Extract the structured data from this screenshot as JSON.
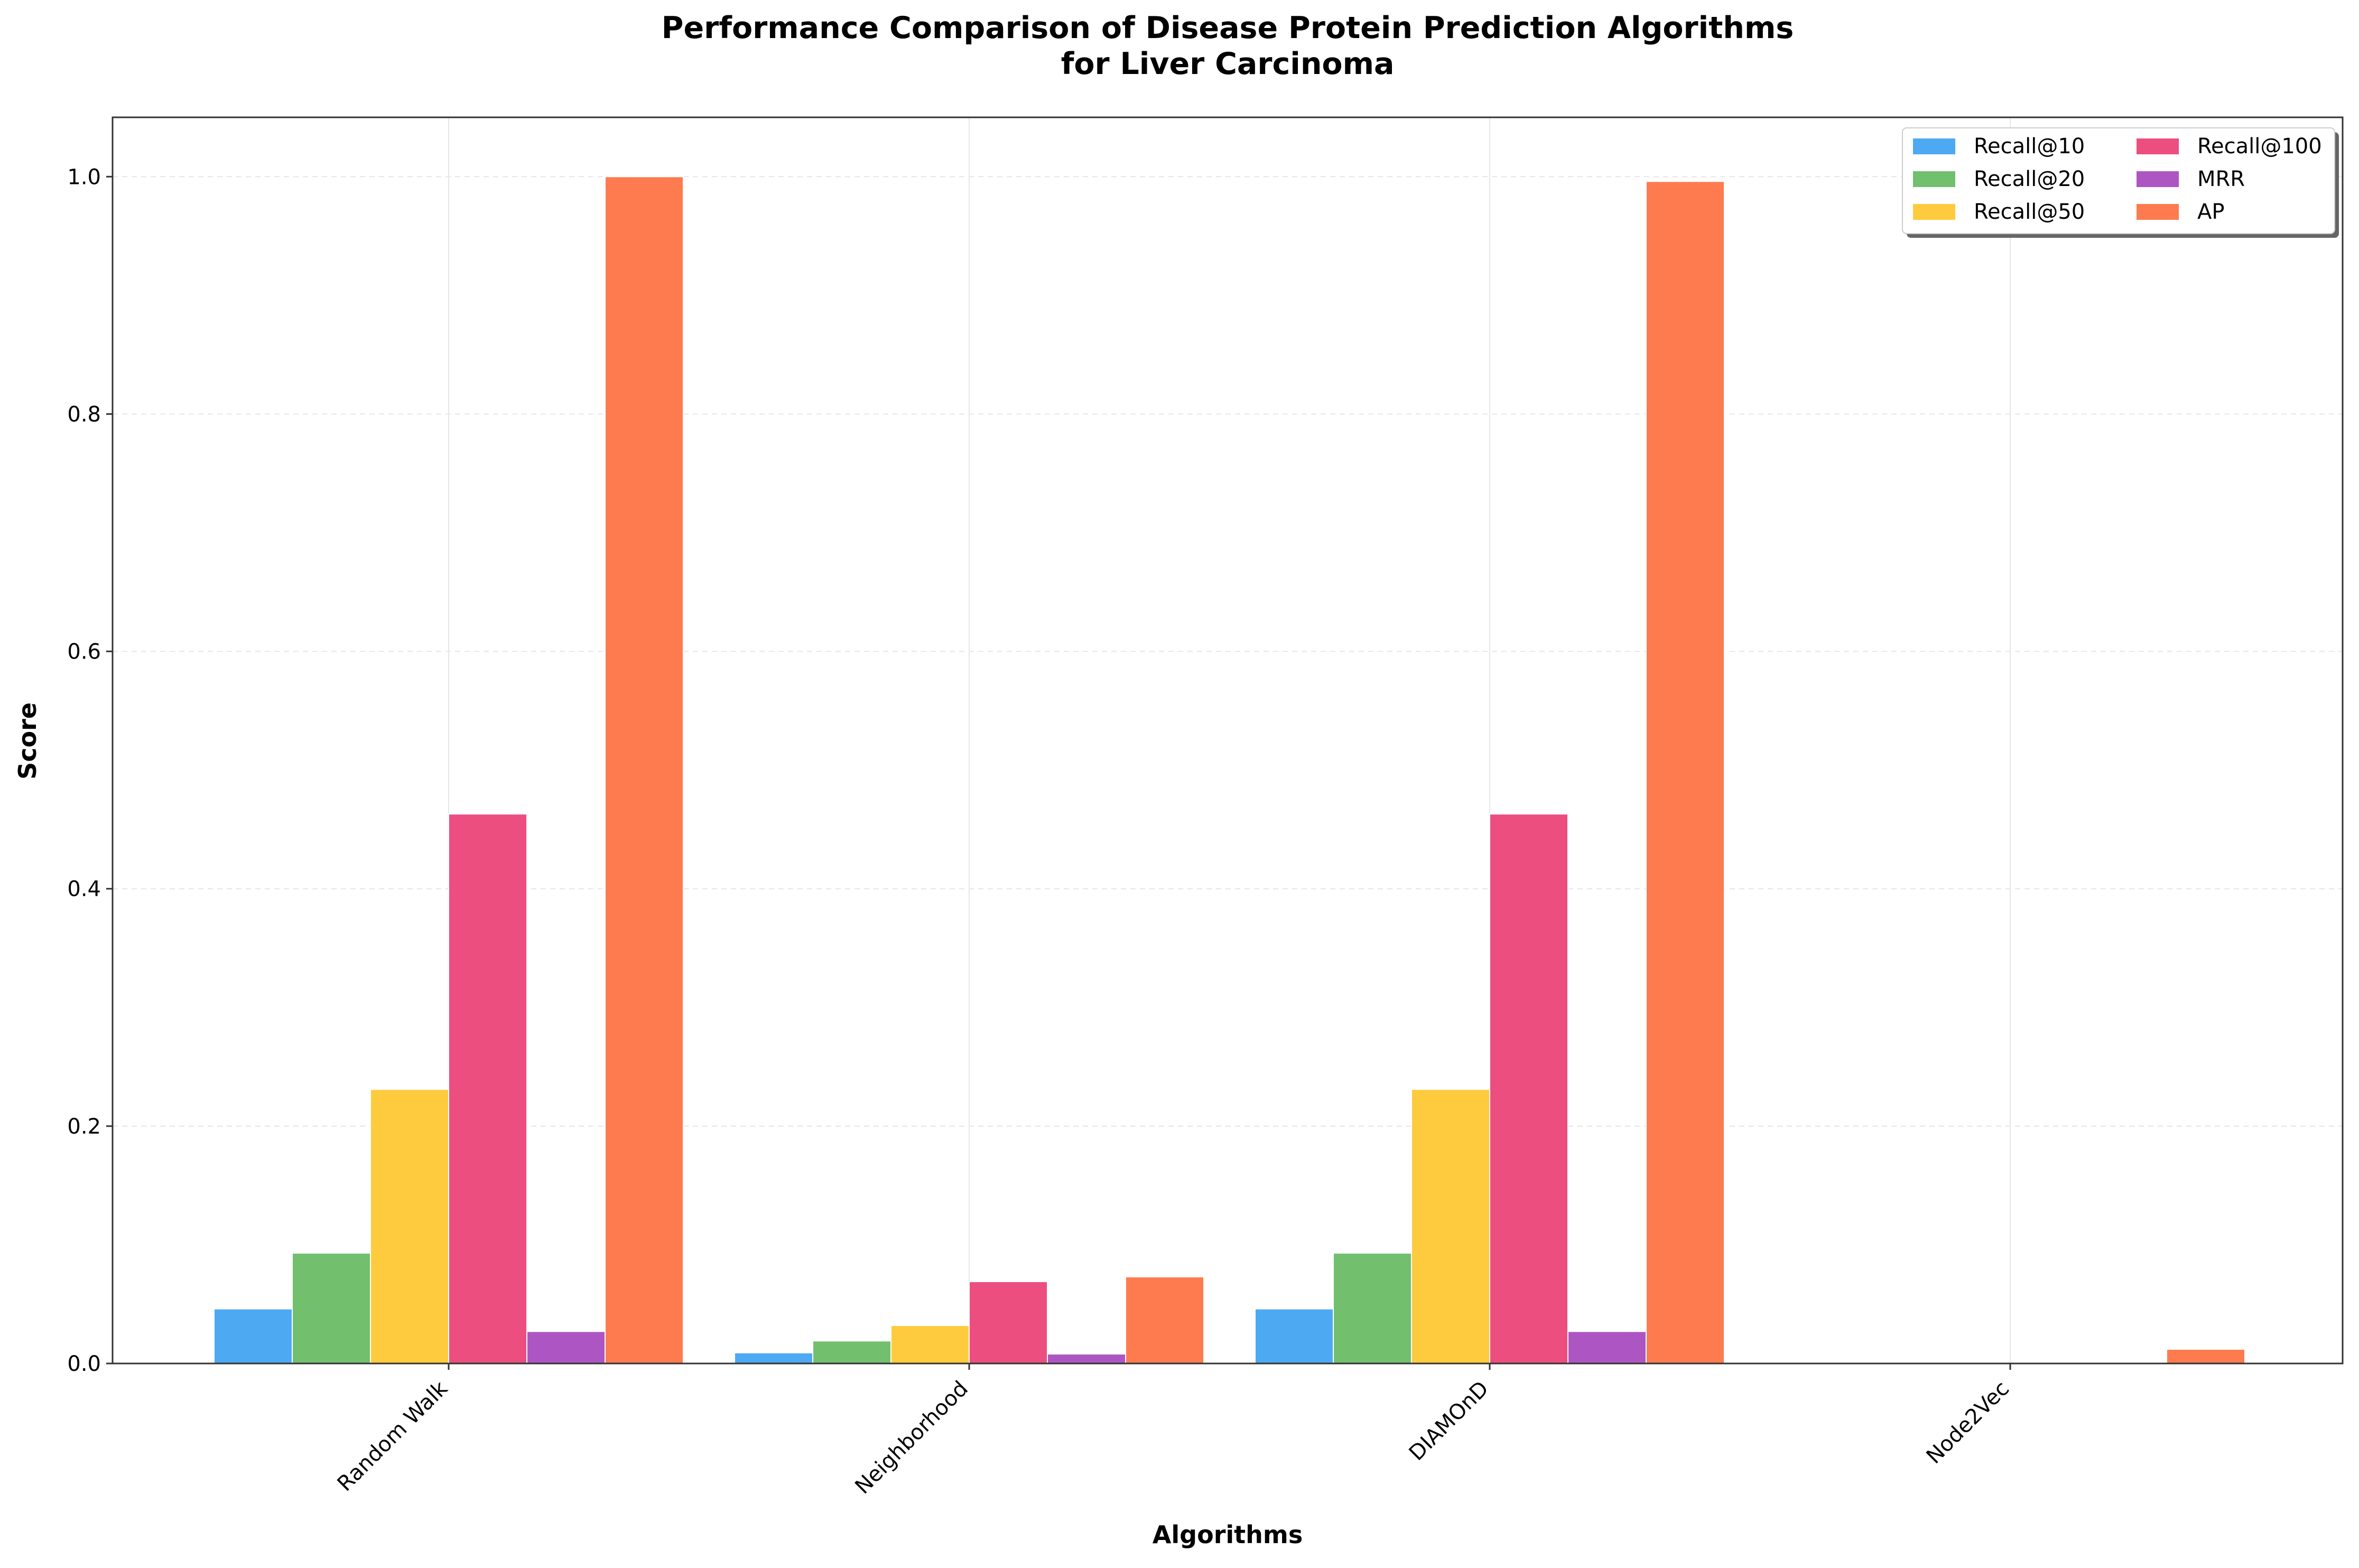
{
  "chart_data": {
    "type": "bar",
    "title_line1": "Performance Comparison of Disease Protein Prediction Algorithms",
    "title_line2": "for Liver Carcinoma",
    "xlabel": "Algorithms",
    "ylabel": "Score",
    "ylim": [
      0,
      1.05
    ],
    "yticks": [
      "0.0",
      "0.2",
      "0.4",
      "0.6",
      "0.8",
      "1.0"
    ],
    "categories": [
      "Random Walk",
      "Neighborhood",
      "DIAMOnD",
      "Node2Vec"
    ],
    "grid": true,
    "legend_position": "top-right",
    "series": [
      {
        "name": "Recall@10",
        "color": "#4da9f2",
        "values": [
          0.046,
          0.009,
          0.046,
          0.0
        ]
      },
      {
        "name": "Recall@20",
        "color": "#72bf6e",
        "values": [
          0.093,
          0.019,
          0.093,
          0.0
        ]
      },
      {
        "name": "Recall@50",
        "color": "#fecb3e",
        "values": [
          0.231,
          0.032,
          0.231,
          0.0
        ]
      },
      {
        "name": "Recall@100",
        "color": "#ec4e80",
        "values": [
          0.463,
          0.069,
          0.463,
          0.0
        ]
      },
      {
        "name": "MRR",
        "color": "#ad56c3",
        "values": [
          0.027,
          0.008,
          0.027,
          0.0
        ]
      },
      {
        "name": "AP",
        "color": "#fe7b50",
        "values": [
          1.0,
          0.073,
          0.996,
          0.012
        ]
      }
    ]
  }
}
